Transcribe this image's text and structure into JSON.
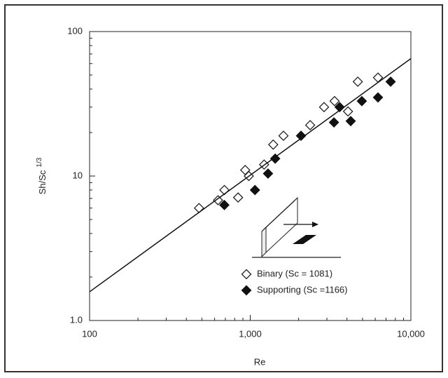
{
  "chart_data": {
    "type": "scatter",
    "log_x": true,
    "log_y": true,
    "xlabel": "Re",
    "ylabel": "Sh/Sc",
    "ylabel_superscript": "1/3",
    "xlim": [
      100,
      10000
    ],
    "ylim": [
      1,
      100
    ],
    "xticks": [
      100,
      {
        "value": 1000,
        "label": "1,000"
      },
      {
        "value": 10000,
        "label": "10,000"
      }
    ],
    "yticks": [
      {
        "value": 1,
        "label": "1.0"
      },
      10,
      100
    ],
    "xminorticks": [
      200,
      300,
      400,
      500,
      600,
      700,
      800,
      900,
      2000,
      3000,
      4000,
      5000,
      6000,
      7000,
      8000,
      9000
    ],
    "yminorticks": [
      2,
      3,
      4,
      5,
      6,
      7,
      8,
      9,
      20,
      30,
      40,
      50,
      60,
      70,
      80,
      90
    ],
    "series": [
      {
        "name": "Binary (Sc = 1081)",
        "marker": "open-diamond",
        "color": "#222",
        "x": [
          480,
          630,
          690,
          840,
          930,
          980,
          1220,
          1390,
          1610,
          2360,
          2880,
          3350,
          4060,
          4670,
          6240
        ],
        "values": [
          6.0,
          6.8,
          8.0,
          7.1,
          11,
          10,
          12,
          16.5,
          19,
          22.5,
          30,
          33,
          28,
          45,
          48
        ]
      },
      {
        "name": "Supporting (Sc =1166)",
        "marker": "filled-diamond",
        "color": "#111",
        "x": [
          690,
          1070,
          1290,
          1430,
          2070,
          3320,
          3600,
          4220,
          4950,
          6240,
          7480
        ],
        "values": [
          6.3,
          8.0,
          10.4,
          13.2,
          19,
          23.5,
          30,
          24,
          33,
          35,
          45
        ]
      },
      {
        "marker": "line",
        "color": "#111",
        "x": [
          100,
          10000
        ],
        "values": [
          1.58,
          65
        ]
      }
    ]
  }
}
